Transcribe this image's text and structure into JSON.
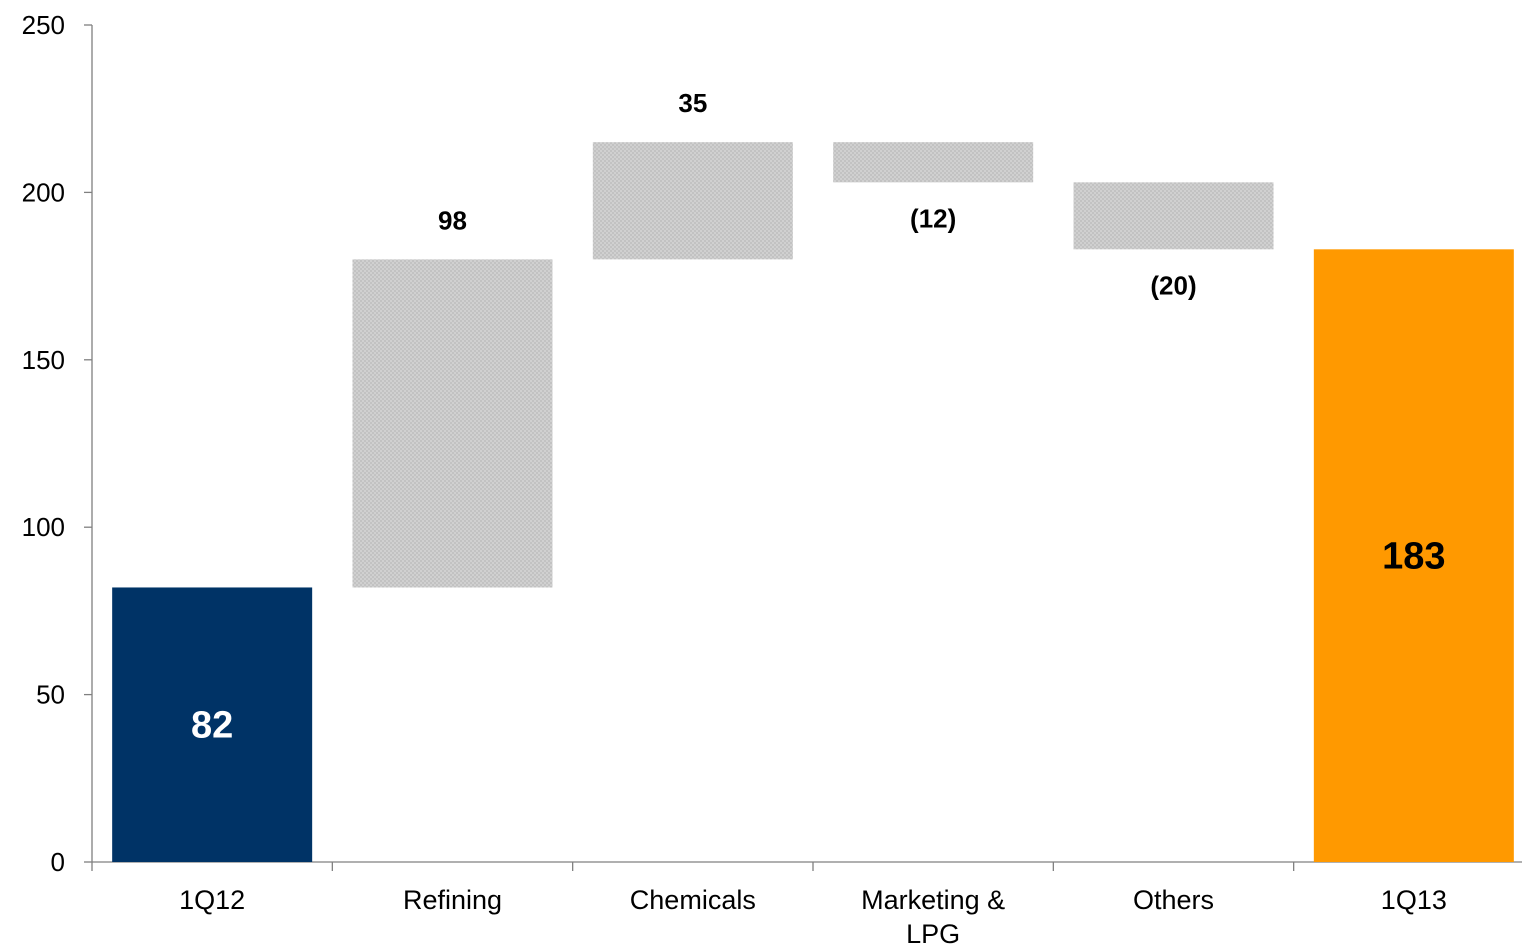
{
  "chart_data": {
    "type": "bar",
    "subtype": "waterfall",
    "categories": [
      "1Q12",
      "Refining",
      "Chemicals",
      "Marketing &\nLPG",
      "Others",
      "1Q13"
    ],
    "category_lines": [
      [
        "1Q12"
      ],
      [
        "Refining"
      ],
      [
        "Chemicals"
      ],
      [
        "Marketing &",
        "LPG"
      ],
      [
        "Others"
      ],
      [
        "1Q13"
      ]
    ],
    "values": [
      82,
      98,
      35,
      -12,
      -20,
      183
    ],
    "bar_kind": [
      "total",
      "delta",
      "delta",
      "delta",
      "delta",
      "total"
    ],
    "labels": [
      "82",
      "98",
      "35",
      "(12)",
      "(20)",
      "183"
    ],
    "ylim": [
      0,
      250
    ],
    "yticks": [
      0,
      50,
      100,
      150,
      200,
      250
    ],
    "ytick_labels": [
      "0",
      "50",
      "100",
      "150",
      "200",
      "250"
    ],
    "title": "",
    "xlabel": "",
    "ylabel": "",
    "grid": false,
    "legend": "none",
    "colors": {
      "start_total": "#003366",
      "end_total": "#FF9900",
      "delta": "#D0D0D0",
      "delta_dot": "#B8B8B8",
      "start_label": "#FFFFFF",
      "end_label": "#000000",
      "axis": "#808080"
    }
  }
}
